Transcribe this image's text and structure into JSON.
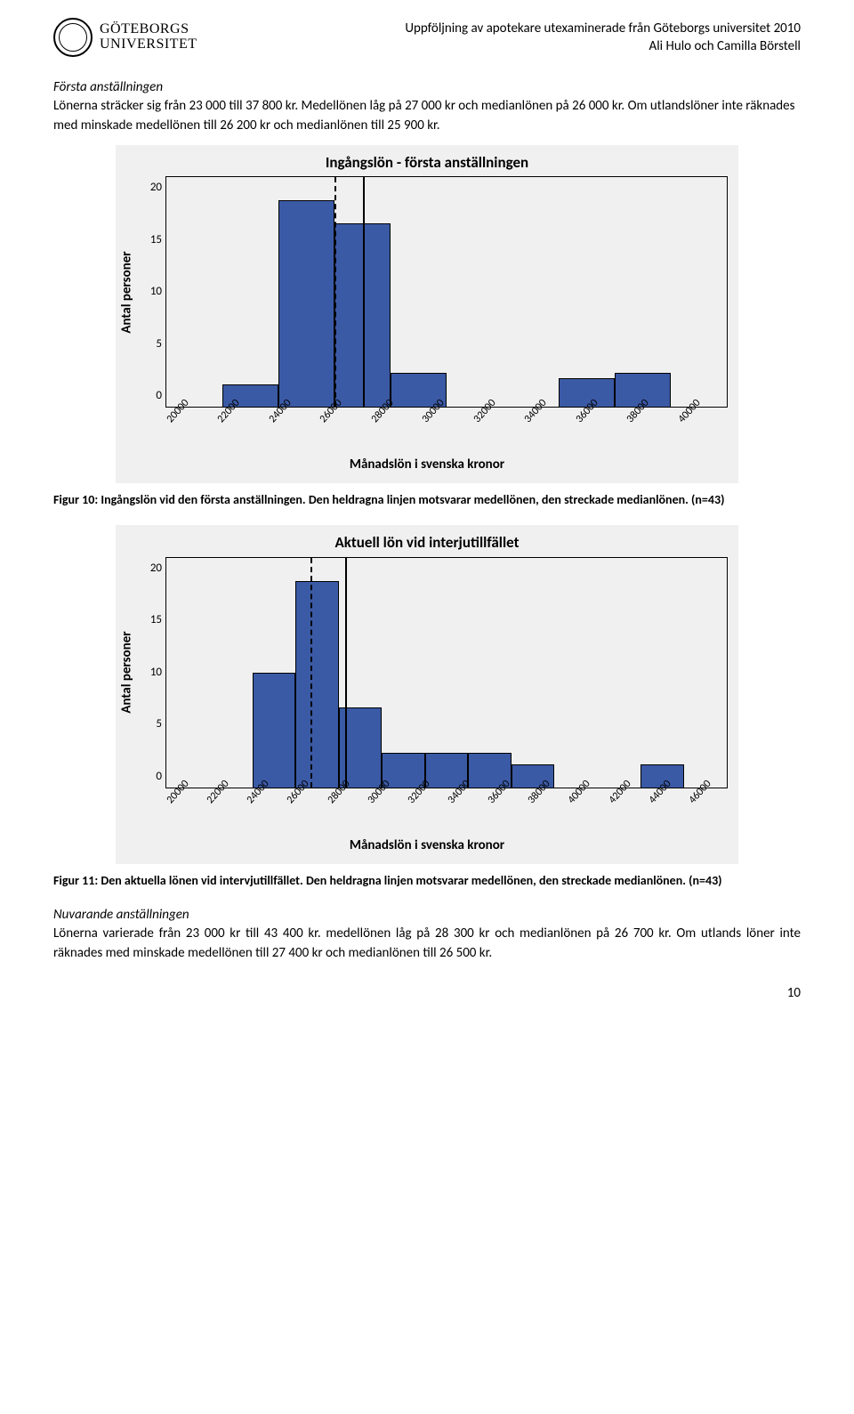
{
  "header": {
    "logo_line1": "GÖTEBORGS",
    "logo_line2": "UNIVERSITET",
    "title_line1": "Uppföljning av apotekare utexaminerade från Göteborgs universitet 2010",
    "title_line2": "Ali Hulo och Camilla Börstell"
  },
  "section1": {
    "heading": "Första anställningen",
    "paragraph": "Lönerna sträcker sig från 23 000 till 37 800 kr. Medellönen låg på 27 000 kr och medianlönen på 26 000 kr. Om utlandslöner inte räknades med minskade medellönen till 26 200 kr och medianlönen till 25 900 kr."
  },
  "chart1": {
    "title": "Ingångslön - första anställningen",
    "y_label": "Antal personer",
    "x_label": "Månadslön i svenska kronor",
    "y_ticks": [
      "20",
      "15",
      "10",
      "5",
      "0"
    ],
    "y_max": 20,
    "x_ticks": [
      "20000",
      "22000",
      "24000",
      "26000",
      "28000",
      "30000",
      "32000",
      "34000",
      "36000",
      "38000",
      "40000"
    ],
    "bars": [
      {
        "bin_left": 22000,
        "value": 2
      },
      {
        "bin_left": 24000,
        "value": 18
      },
      {
        "bin_left": 26000,
        "value": 16
      },
      {
        "bin_left": 28000,
        "value": 3
      },
      {
        "bin_left": 34000,
        "value": 2.5
      },
      {
        "bin_left": 36000,
        "value": 3
      }
    ],
    "median_x": 26000,
    "mean_x": 27000,
    "x_min": 20000,
    "x_max": 40000,
    "bar_color": "#3b5aa5",
    "background_color": "#f0f0f0"
  },
  "caption1": "Figur 10: Ingångslön vid den första anställningen. Den heldragna linjen motsvarar medellönen, den streckade medianlönen. (n=43)",
  "chart2": {
    "title": "Aktuell lön vid interjutillfället",
    "y_label": "Antal personer",
    "x_label": "Månadslön i svenska kronor",
    "y_ticks": [
      "20",
      "15",
      "10",
      "5",
      "0"
    ],
    "y_max": 20,
    "x_ticks": [
      "20000",
      "22000",
      "24000",
      "26000",
      "28000",
      "30000",
      "32000",
      "34000",
      "36000",
      "38000",
      "40000",
      "42000",
      "44000",
      "46000"
    ],
    "bars": [
      {
        "bin_left": 24000,
        "value": 10
      },
      {
        "bin_left": 26000,
        "value": 18
      },
      {
        "bin_left": 28000,
        "value": 7
      },
      {
        "bin_left": 30000,
        "value": 3
      },
      {
        "bin_left": 32000,
        "value": 3
      },
      {
        "bin_left": 34000,
        "value": 3
      },
      {
        "bin_left": 36000,
        "value": 2
      },
      {
        "bin_left": 42000,
        "value": 2
      }
    ],
    "median_x": 26700,
    "mean_x": 28300,
    "x_min": 20000,
    "x_max": 46000,
    "bar_color": "#3b5aa5",
    "background_color": "#f0f0f0"
  },
  "caption2": "Figur 11: Den aktuella lönen vid intervjutillfället. Den heldragna linjen motsvarar medellönen, den streckade medianlönen. (n=43)",
  "section2": {
    "heading": "Nuvarande anställningen",
    "paragraph": "Lönerna varierade från 23 000 kr till 43 400 kr. medellönen låg på 28 300 kr och medianlönen på 26 700 kr. Om utlands löner inte räknades med minskade medellönen till 27 400 kr och medianlönen till 26 500 kr."
  },
  "page_number": "10"
}
